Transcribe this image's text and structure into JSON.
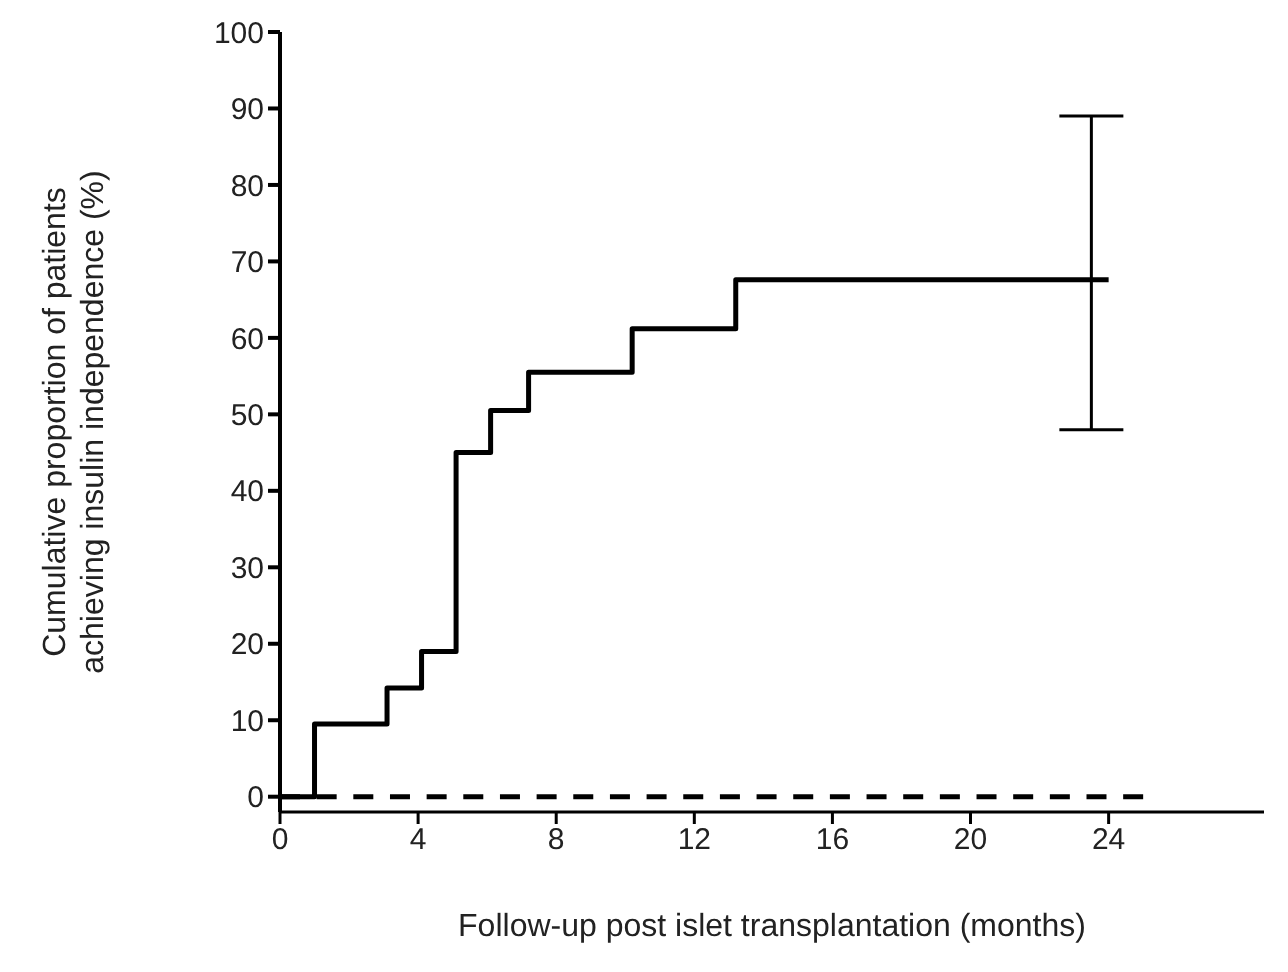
{
  "chart_data": {
    "type": "step",
    "xlabel": "Follow-up post islet transplantation (months)",
    "ylabel": "Cumulative proportion of patients\nachieving insulin independence (%)",
    "xlim": [
      0,
      28.5
    ],
    "xticks": [
      0,
      4,
      8,
      12,
      16,
      20,
      24
    ],
    "ylim": [
      -2,
      100
    ],
    "yticks": [
      0,
      10,
      20,
      30,
      40,
      50,
      60,
      70,
      80,
      90,
      100
    ],
    "marker": "none",
    "series": [
      {
        "color": "#000000",
        "line_style": "solid",
        "x": [
          0,
          1,
          3.1,
          4.1,
          5.1,
          6.1,
          7.2,
          10.2,
          13.2,
          23.5,
          24
        ],
        "values": [
          0,
          9.5,
          14.2,
          19,
          45,
          50.5,
          55.5,
          61.2,
          67.6,
          67.6,
          67.6
        ],
        "errors": [
          null,
          null,
          null,
          null,
          null,
          null,
          null,
          null,
          null,
          [
            48,
            89
          ],
          null
        ]
      },
      {
        "type": "line",
        "color": "#000000",
        "line_style": "dashed",
        "x": [
          0,
          25
        ],
        "values": [
          0,
          0
        ]
      }
    ]
  }
}
